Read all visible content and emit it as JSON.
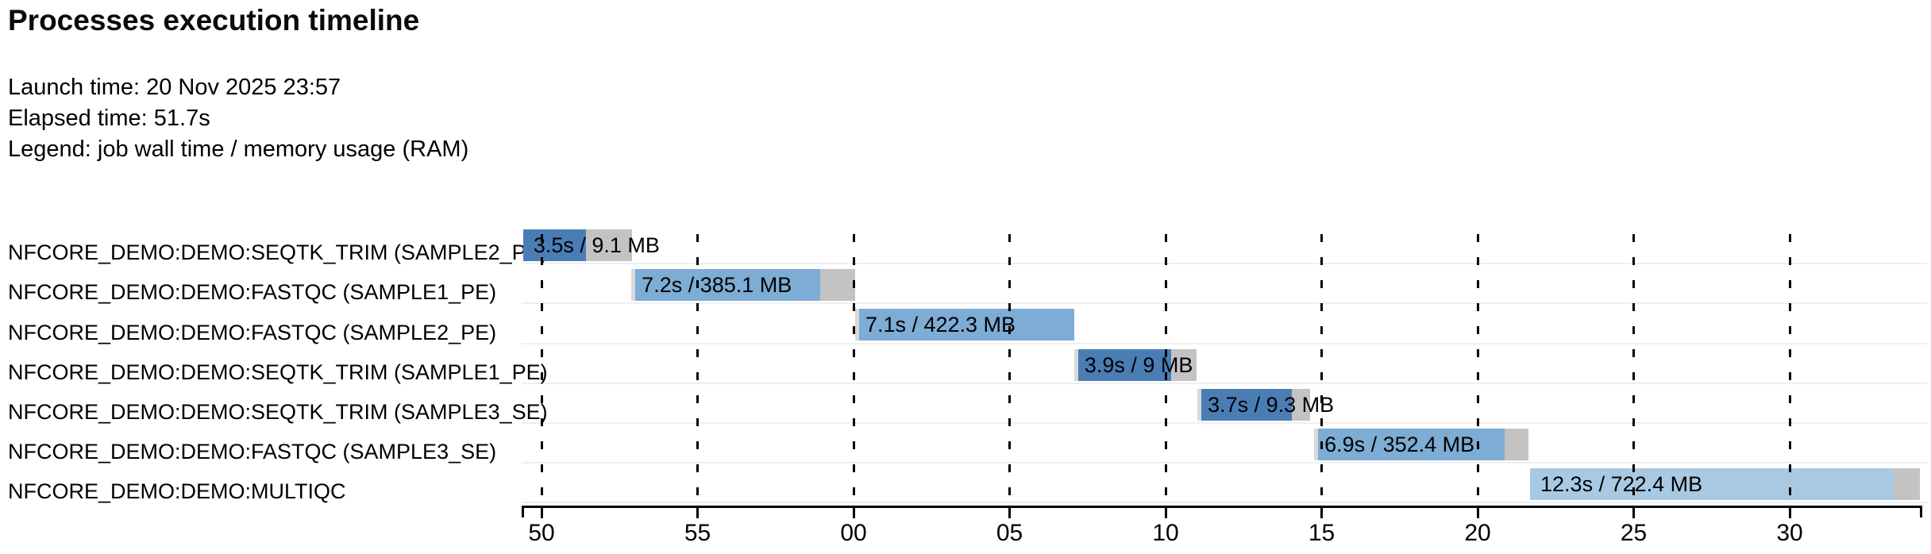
{
  "header": {
    "title": "Processes execution timeline",
    "launch_time": "Launch time: 20 Nov 2025 23:57",
    "elapsed_time": "Elapsed time: 51.7s",
    "legend": "Legend: job wall time / memory usage (RAM)"
  },
  "chart_data": {
    "type": "bar",
    "variant": "gantt-timeline",
    "title": "Processes execution timeline",
    "legend_note": "job wall time / memory usage (RAM)",
    "grid": "dashed vertical gridlines at each tick",
    "axis": {
      "min": 49.3,
      "max": 94.25,
      "unit": "seconds",
      "note": "ticks are seconds of the minute: 50,55 belong to 23:57 then 00..30 of 23:58",
      "ticks": [
        {
          "t": 50,
          "label": "50"
        },
        {
          "t": 55,
          "label": "55"
        },
        {
          "t": 60,
          "label": "00"
        },
        {
          "t": 65,
          "label": "05"
        },
        {
          "t": 70,
          "label": "10"
        },
        {
          "t": 75,
          "label": "15"
        },
        {
          "t": 80,
          "label": "20"
        },
        {
          "t": 85,
          "label": "25"
        },
        {
          "t": 90,
          "label": "30"
        }
      ]
    },
    "colors": {
      "seqtk_trim_bar": "#4b7db5",
      "fastqc_bar": "#7dacd4",
      "multiqc_bar": "#a9c9e2",
      "tail_gray": "#c3c3c3",
      "pre_gray": "#d9d9d9",
      "row_separator": "#efefef",
      "axis": "#000000"
    },
    "tasks": [
      {
        "process": "NFCORE_DEMO:DEMO:SEQTK_TRIM (SAMPLE2_PE)",
        "bar_label": "3.5s / 9.1 MB",
        "wall_time": "3.5s",
        "memory": "9.1 MB",
        "submit": 49.41,
        "start": 49.41,
        "run_end": 51.42,
        "complete": 52.9,
        "color": "#4b7db5"
      },
      {
        "process": "NFCORE_DEMO:DEMO:FASTQC (SAMPLE1_PE)",
        "bar_label": "7.2s / 385.1 MB",
        "wall_time": "7.2s",
        "memory": "385.1 MB",
        "submit": 52.88,
        "start": 53.0,
        "run_end": 58.93,
        "complete": 60.05,
        "color": "#7dacd4"
      },
      {
        "process": "NFCORE_DEMO:DEMO:FASTQC (SAMPLE2_PE)",
        "bar_label": "7.1s / 422.3 MB",
        "wall_time": "7.1s",
        "memory": "422.3 MB",
        "submit": 60.05,
        "start": 60.18,
        "run_end": 67.07,
        "complete": 67.07,
        "color": "#7dacd4"
      },
      {
        "process": "NFCORE_DEMO:DEMO:SEQTK_TRIM (SAMPLE1_PE)",
        "bar_label": "3.9s / 9 MB",
        "wall_time": "3.9s",
        "memory": "9 MB",
        "submit": 67.07,
        "start": 67.2,
        "run_end": 70.18,
        "complete": 70.99,
        "color": "#4b7db5"
      },
      {
        "process": "NFCORE_DEMO:DEMO:SEQTK_TRIM (SAMPLE3_SE)",
        "bar_label": "3.7s / 9.3 MB",
        "wall_time": "3.7s",
        "memory": "9.3 MB",
        "submit": 71.02,
        "start": 71.14,
        "run_end": 74.04,
        "complete": 74.63,
        "color": "#4b7db5"
      },
      {
        "process": "NFCORE_DEMO:DEMO:FASTQC (SAMPLE3_SE)",
        "bar_label": "6.9s / 352.4 MB",
        "wall_time": "6.9s",
        "memory": "352.4 MB",
        "submit": 74.76,
        "start": 74.88,
        "run_end": 80.86,
        "complete": 81.63,
        "color": "#7dacd4"
      },
      {
        "process": "NFCORE_DEMO:DEMO:MULTIQC",
        "bar_label": "12.3s / 722.4 MB",
        "wall_time": "12.3s",
        "memory": "722.4 MB",
        "submit": 81.68,
        "start": 81.68,
        "run_end": 93.33,
        "complete": 94.17,
        "color": "#a9c9e2"
      }
    ]
  }
}
